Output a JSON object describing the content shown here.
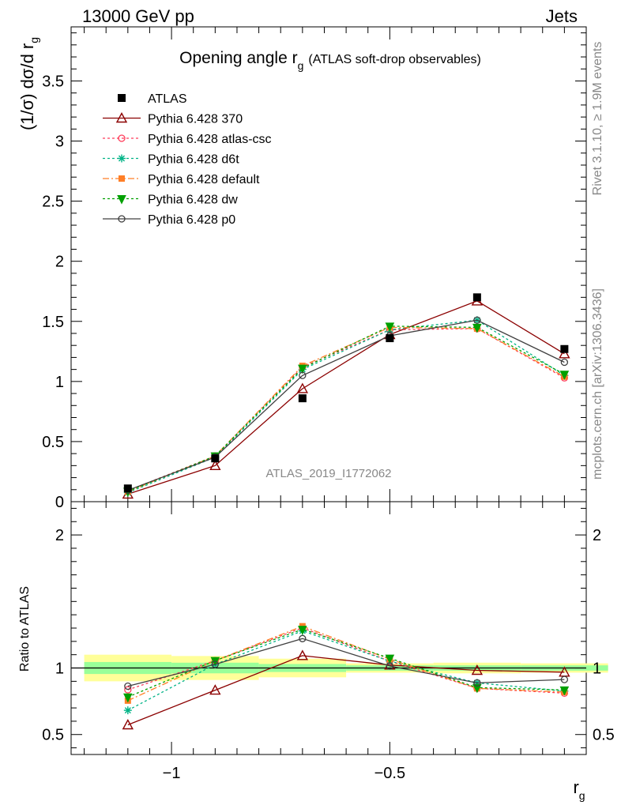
{
  "header": {
    "left": "13000 GeV pp",
    "right": "Jets"
  },
  "title": {
    "main": "Opening angle r",
    "sub": "g",
    "note": "(ATLAS soft-drop observables)"
  },
  "side_labels": {
    "rivet": "Rivet 3.1.10, ≥ 1.9M events",
    "mcplots": "mcplots.cern.ch [arXiv:1306.3436]"
  },
  "watermark": "ATLAS_2019_I1772062",
  "y_label": {
    "prefix": "(1/σ) dσ/d r",
    "sub": "g"
  },
  "ratio_label": "Ratio to ATLAS",
  "x_label": {
    "main": "r",
    "sub": "g"
  },
  "chart_data": {
    "type": "line",
    "x": [
      -1.1,
      -0.9,
      -0.7,
      -0.5,
      -0.3,
      -0.1
    ],
    "bin_edges": [
      -1.2,
      -1.0,
      -0.8,
      -0.6,
      -0.4,
      -0.2,
      0.0
    ],
    "xlim": [
      -1.23,
      -0.05
    ],
    "ylim": [
      0,
      3.95
    ],
    "ratio_ylim": [
      0.35,
      2.25
    ],
    "x_ticks": [
      -1,
      -0.5
    ],
    "x_tick_labels": [
      "−1",
      "−0.5"
    ],
    "y_ticks": [
      0,
      0.5,
      1,
      1.5,
      2,
      2.5,
      3,
      3.5
    ],
    "y_tick_labels": [
      "0",
      "0.5",
      "1",
      "1.5",
      "2",
      "2.5",
      "3",
      "3.5"
    ],
    "ratio_ticks": [
      0.5,
      1,
      2
    ],
    "ratio_tick_labels": [
      "0.5",
      "1",
      "2"
    ],
    "legend_position": "top-left",
    "data": {
      "name": "ATLAS",
      "values": [
        0.11,
        0.36,
        0.86,
        1.36,
        1.7,
        1.27
      ],
      "band_stat": [
        0.045,
        0.04,
        0.03,
        0.02,
        0.02,
        0.02
      ],
      "band_total": [
        0.1,
        0.09,
        0.07,
        0.035,
        0.04,
        0.035
      ]
    },
    "series": [
      {
        "name": "Pythia 6.428 370",
        "color": "#8b0000",
        "dash": "",
        "marker": "triangle",
        "values": [
          0.063,
          0.3,
          0.94,
          1.39,
          1.67,
          1.23
        ]
      },
      {
        "name": "Pythia 6.428 atlas-csc",
        "color": "#ff3c5a",
        "dash": "3,3",
        "marker": "circle",
        "values": [
          0.092,
          0.38,
          1.12,
          1.43,
          1.44,
          1.03
        ]
      },
      {
        "name": "Pythia 6.428 d6t",
        "color": "#00b386",
        "dash": "3,3",
        "marker": "star",
        "values": [
          0.075,
          0.37,
          1.1,
          1.43,
          1.51,
          1.05
        ]
      },
      {
        "name": "Pythia 6.428 default",
        "color": "#ff7f27",
        "dash": "8,3,2,3",
        "marker": "square",
        "values": [
          0.083,
          0.38,
          1.13,
          1.45,
          1.44,
          1.04
        ]
      },
      {
        "name": "Pythia 6.428 dw",
        "color": "#00a000",
        "dash": "3,3",
        "marker": "triangle-down",
        "values": [
          0.086,
          0.38,
          1.11,
          1.46,
          1.45,
          1.06
        ]
      },
      {
        "name": "Pythia 6.428 p0",
        "color": "#404040",
        "dash": "",
        "marker": "circle",
        "values": [
          0.095,
          0.37,
          1.05,
          1.38,
          1.51,
          1.16
        ]
      }
    ]
  }
}
